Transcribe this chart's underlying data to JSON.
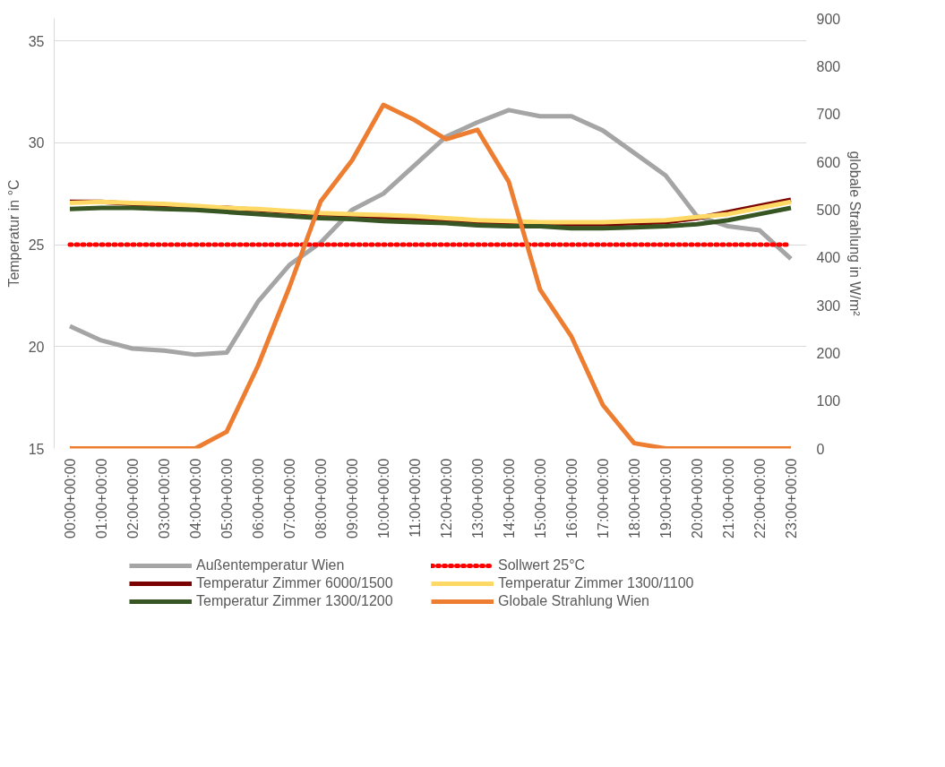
{
  "chart_data": {
    "type": "line",
    "ylabel": "Temperatur in °C",
    "y2label": "globale Strahlung in W/m²",
    "categories": [
      "00:00+00:00",
      "01:00+00:00",
      "02:00+00:00",
      "03:00+00:00",
      "04:00+00:00",
      "05:00+00:00",
      "06:00+00:00",
      "07:00+00:00",
      "08:00+00:00",
      "09:00+00:00",
      "10:00+00:00",
      "11:00+00:00",
      "12:00+00:00",
      "13:00+00:00",
      "14:00+00:00",
      "15:00+00:00",
      "16:00+00:00",
      "17:00+00:00",
      "18:00+00:00",
      "19:00+00:00",
      "20:00+00:00",
      "21:00+00:00",
      "22:00+00:00",
      "23:00+00:00"
    ],
    "ylim": [
      15,
      36.1
    ],
    "yticks": [
      15,
      20,
      25,
      30,
      35
    ],
    "y2lim": [
      0,
      900
    ],
    "y2ticks": [
      0,
      100,
      200,
      300,
      400,
      500,
      600,
      700,
      800,
      900
    ],
    "grid": "y",
    "legend": "bottom",
    "line_style": "solid",
    "series": [
      {
        "name": "Außentemperatur Wien",
        "color": "#a5a5a5",
        "values": [
          21.0,
          20.3,
          19.9,
          19.8,
          19.6,
          19.7,
          22.2,
          24.0,
          25.1,
          26.7,
          27.5,
          28.9,
          30.3,
          31.0,
          31.6,
          31.3,
          31.3,
          30.6,
          29.5,
          28.4,
          26.4,
          25.9,
          25.7,
          24.3
        ]
      },
      {
        "name": "Sollwert 25°C",
        "color": "#ff0000",
        "line_style": "dotted",
        "values": [
          25,
          25,
          25,
          25,
          25,
          25,
          25,
          25,
          25,
          25,
          25,
          25,
          25,
          25,
          25,
          25,
          25,
          25,
          25,
          25,
          25,
          25,
          25,
          25
        ]
      },
      {
        "name": "Temperatur Zimmer 6000/1500",
        "color": "#7b0000",
        "values": [
          27.1,
          27.1,
          27.0,
          26.95,
          26.85,
          26.8,
          26.7,
          26.6,
          26.5,
          26.45,
          26.35,
          26.3,
          26.2,
          26.1,
          26.05,
          26.0,
          26.0,
          26.0,
          26.05,
          26.1,
          26.3,
          26.6,
          26.9,
          27.2
        ]
      },
      {
        "name": "Temperatur Zimmer 1300/1100",
        "color": "#ffd966",
        "values": [
          27.05,
          27.1,
          27.05,
          27.0,
          26.9,
          26.8,
          26.75,
          26.65,
          26.55,
          26.5,
          26.45,
          26.4,
          26.3,
          26.2,
          26.15,
          26.1,
          26.1,
          26.1,
          26.15,
          26.2,
          26.35,
          26.5,
          26.8,
          27.1
        ]
      },
      {
        "name": "Temperatur Zimmer 1300/1200",
        "color": "#375623",
        "values": [
          26.75,
          26.8,
          26.8,
          26.75,
          26.7,
          26.6,
          26.5,
          26.4,
          26.3,
          26.25,
          26.15,
          26.1,
          26.05,
          25.95,
          25.9,
          25.9,
          25.8,
          25.8,
          25.85,
          25.9,
          26.0,
          26.2,
          26.5,
          26.8
        ]
      },
      {
        "name": "Globale Strahlung Wien",
        "color": "#ed7d31",
        "axis": "y2",
        "values": [
          0,
          0,
          0,
          0,
          0,
          35,
          173,
          337,
          517,
          603,
          719,
          687,
          647,
          667,
          558,
          332,
          234,
          91,
          11,
          0,
          0,
          0,
          0,
          0
        ]
      }
    ]
  }
}
